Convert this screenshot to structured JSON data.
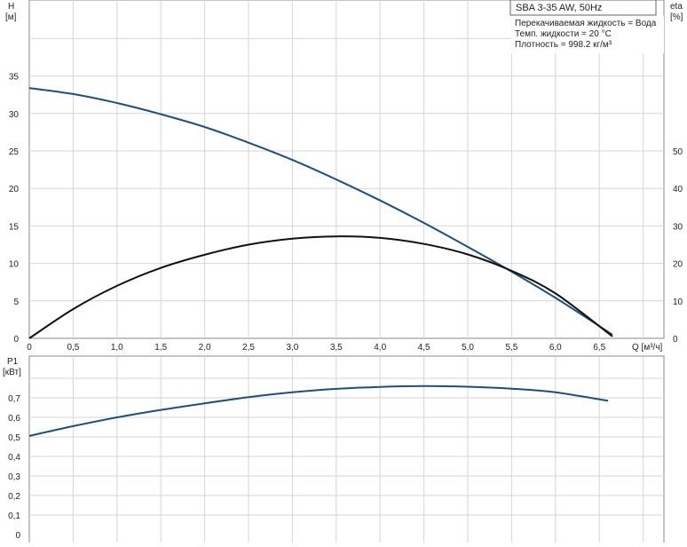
{
  "chart_data": [
    {
      "type": "line",
      "title": "SBA 3-35 AW, 50Hz",
      "notes": [
        "Перекачиваемая жидкость = Вода",
        "Темп. жидкости = 20 °C",
        "Плотность = 998.2 кг/м³"
      ],
      "xlabel": "Q [м³/ч]",
      "ylabel": [
        "H",
        "[м]"
      ],
      "y2label": [
        "eta",
        "[%]"
      ],
      "xlim": [
        0,
        7.2
      ],
      "ylim": [
        0,
        45
      ],
      "y2lim": [
        0,
        90
      ],
      "grid": true,
      "x_ticks": [
        "0",
        "0,5",
        "1,0",
        "1,5",
        "2,0",
        "2,5",
        "3,0",
        "3,5",
        "4,0",
        "4,5",
        "5,0",
        "5,5",
        "6,0",
        "6,5"
      ],
      "y_ticks": [
        "0",
        "5",
        "10",
        "15",
        "20",
        "25",
        "30",
        "35"
      ],
      "y2_ticks": [
        "0",
        "10",
        "20",
        "30",
        "40",
        "50"
      ],
      "series": [
        {
          "axis": "left",
          "color": "#1f4e79",
          "x": [
            0,
            0.5,
            1,
            1.5,
            2,
            2.5,
            3,
            3.5,
            4,
            4.5,
            5,
            5.5,
            6,
            6.65
          ],
          "y": [
            33.4,
            32.6,
            31.4,
            29.9,
            28.2,
            26.1,
            23.8,
            21.2,
            18.4,
            15.4,
            12.2,
            8.9,
            5.4,
            0.5
          ]
        },
        {
          "axis": "right",
          "color": "#111111",
          "x": [
            0,
            0.5,
            1,
            1.5,
            2,
            2.5,
            3,
            3.5,
            4,
            4.5,
            5,
            5.5,
            6,
            6.65
          ],
          "y": [
            0,
            7.8,
            14,
            18.8,
            22.3,
            25,
            26.6,
            27.2,
            26.8,
            25.2,
            22.4,
            18,
            12,
            0.5
          ]
        }
      ]
    },
    {
      "type": "line",
      "xlim": [
        0,
        7.2
      ],
      "ylim": [
        0,
        0.92
      ],
      "ylabel": [
        "P1",
        "[кВт]"
      ],
      "grid": true,
      "y_ticks": [
        "0",
        "0,1",
        "0,2",
        "0,3",
        "0,4",
        "0,5",
        "0,6",
        "0,7"
      ],
      "series": [
        {
          "color": "#1f4e79",
          "x": [
            0,
            0.5,
            1,
            1.5,
            2,
            2.5,
            3,
            3.5,
            4,
            4.5,
            5,
            5.5,
            6,
            6.6
          ],
          "y": [
            0.505,
            0.555,
            0.6,
            0.638,
            0.672,
            0.703,
            0.728,
            0.746,
            0.756,
            0.76,
            0.757,
            0.747,
            0.728,
            0.685
          ]
        }
      ]
    }
  ]
}
